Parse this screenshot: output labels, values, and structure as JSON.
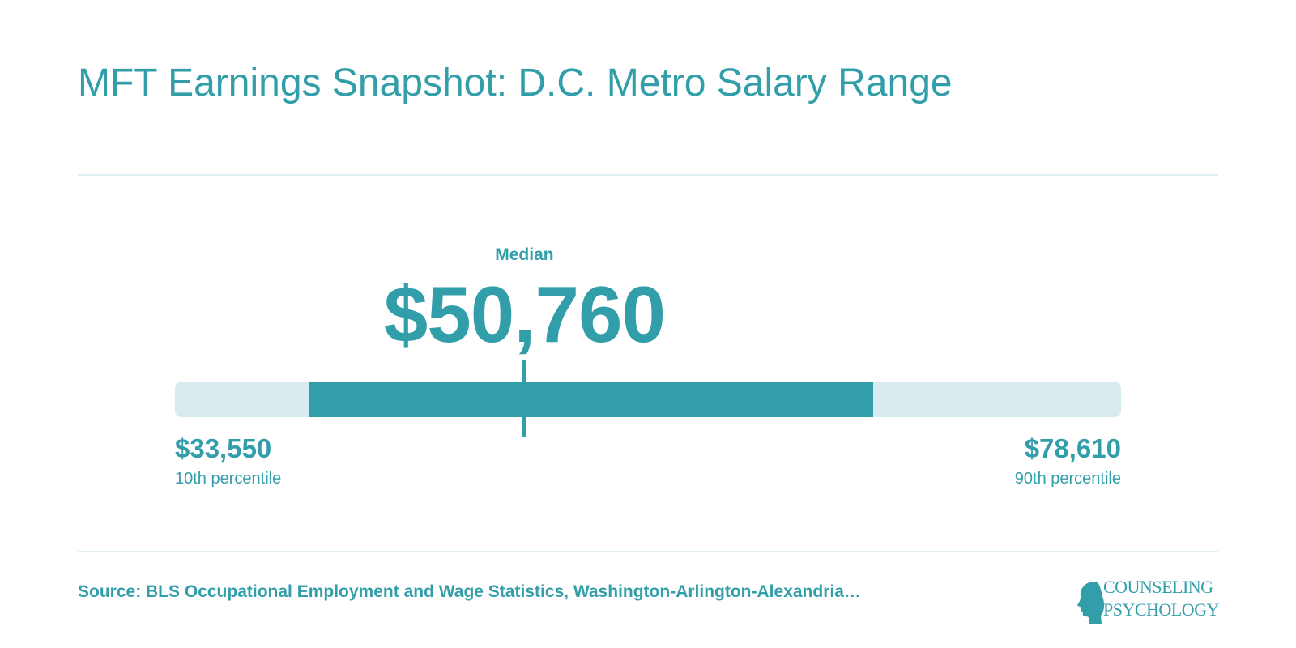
{
  "header": {
    "title": "MFT Earnings Snapshot: D.C. Metro Salary Range"
  },
  "chart_data": {
    "type": "range",
    "min": 33550,
    "median": 50760,
    "max": 78610,
    "scale_min": 22850,
    "scale_max": 98410,
    "median_label": "Median",
    "median_display": "$50,760",
    "low": {
      "value_display": "$33,550",
      "label": "10th percentile"
    },
    "high": {
      "value_display": "$78,610",
      "label": "90th percentile"
    }
  },
  "footer": {
    "source": "Source: BLS Occupational Employment and Wage Statistics, Washington-Arlington-Alexandria…",
    "logo_line1": "COUNSELING",
    "logo_line2": "PSYCHOLOGY"
  },
  "colors": {
    "accent": "#329ea9",
    "track": "#d8ecef",
    "divider": "#e0eff2"
  }
}
